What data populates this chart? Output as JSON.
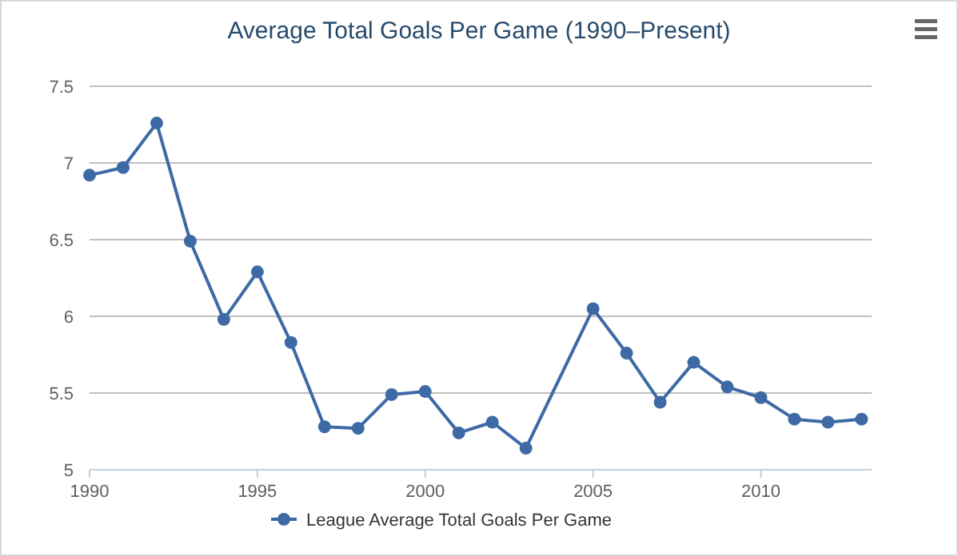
{
  "chart_data": {
    "type": "line",
    "title": "Average Total Goals Per Game (1990–Present)",
    "x": [
      1990,
      1991,
      1992,
      1993,
      1994,
      1995,
      1996,
      1997,
      1998,
      1999,
      2000,
      2001,
      2002,
      2003,
      2005,
      2006,
      2007,
      2008,
      2009,
      2010,
      2011,
      2012,
      2013
    ],
    "series": [
      {
        "name": "League Average Total Goals Per Game",
        "color": "#3d6aa5",
        "values": [
          6.92,
          6.97,
          7.26,
          6.49,
          5.98,
          6.29,
          5.83,
          5.28,
          5.27,
          5.49,
          5.51,
          5.24,
          5.31,
          5.14,
          6.05,
          5.76,
          5.44,
          5.7,
          5.54,
          5.47,
          5.33,
          5.31,
          5.33
        ]
      }
    ],
    "xlim": [
      1990,
      2013.3
    ],
    "xticks": [
      1990,
      1995,
      2000,
      2005,
      2010
    ],
    "ylim": [
      5,
      7.5
    ],
    "yticks": [
      5,
      5.5,
      6,
      6.5,
      7,
      7.5
    ],
    "grid": "y",
    "legend": "bottom",
    "marker": "circle"
  }
}
